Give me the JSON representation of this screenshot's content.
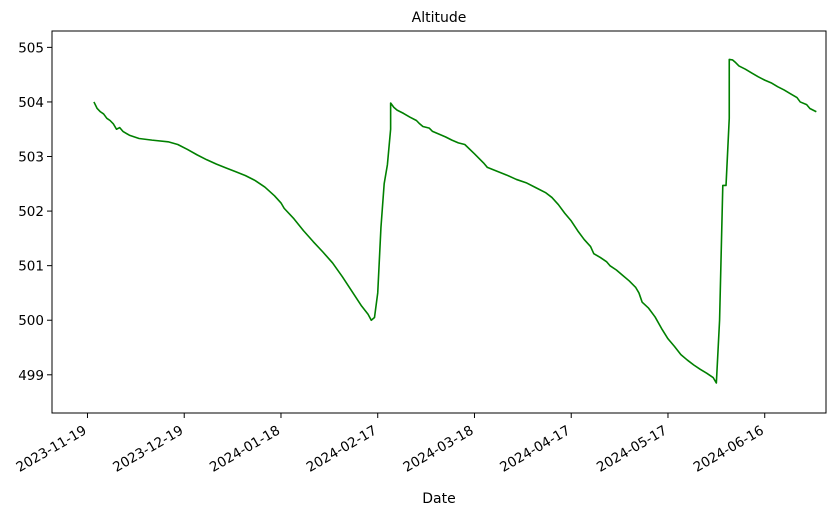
{
  "chart_data": {
    "type": "line",
    "title": "Altitude",
    "xlabel": "Date",
    "ylabel": "",
    "x_axis_type": "date",
    "xlim": [
      "2023-11-08",
      "2024-07-05"
    ],
    "ylim": [
      498.3,
      505.3
    ],
    "x_ticks": [
      "2023-11-19",
      "2023-12-19",
      "2024-01-18",
      "2024-02-17",
      "2024-03-18",
      "2024-04-17",
      "2024-05-17",
      "2024-06-16"
    ],
    "y_ticks": [
      499,
      500,
      501,
      502,
      503,
      504,
      505
    ],
    "grid": false,
    "legend": "none",
    "line_color": "#008000",
    "series": [
      {
        "points": [
          [
            "2023-11-21",
            504.0
          ],
          [
            "2023-11-22",
            503.88
          ],
          [
            "2023-11-23",
            503.82
          ],
          [
            "2023-11-24",
            503.78
          ],
          [
            "2023-11-25",
            503.7
          ],
          [
            "2023-11-26",
            503.66
          ],
          [
            "2023-11-27",
            503.6
          ],
          [
            "2023-11-28",
            503.5
          ],
          [
            "2023-11-29",
            503.53
          ],
          [
            "2023-11-30",
            503.46
          ],
          [
            "2023-12-02",
            503.39
          ],
          [
            "2023-12-05",
            503.33
          ],
          [
            "2023-12-09",
            503.3
          ],
          [
            "2023-12-14",
            503.27
          ],
          [
            "2023-12-17",
            503.22
          ],
          [
            "2023-12-20",
            503.13
          ],
          [
            "2023-12-23",
            503.03
          ],
          [
            "2023-12-26",
            502.94
          ],
          [
            "2023-12-29",
            502.86
          ],
          [
            "2024-01-01",
            502.79
          ],
          [
            "2024-01-04",
            502.72
          ],
          [
            "2024-01-07",
            502.65
          ],
          [
            "2024-01-10",
            502.56
          ],
          [
            "2024-01-13",
            502.44
          ],
          [
            "2024-01-16",
            502.28
          ],
          [
            "2024-01-18",
            502.15
          ],
          [
            "2024-01-19",
            502.05
          ],
          [
            "2024-01-22",
            501.86
          ],
          [
            "2024-01-25",
            501.64
          ],
          [
            "2024-01-28",
            501.44
          ],
          [
            "2024-01-31",
            501.25
          ],
          [
            "2024-02-03",
            501.05
          ],
          [
            "2024-02-06",
            500.8
          ],
          [
            "2024-02-09",
            500.53
          ],
          [
            "2024-02-12",
            500.26
          ],
          [
            "2024-02-14",
            500.11
          ],
          [
            "2024-02-15",
            500.0
          ],
          [
            "2024-02-16",
            500.05
          ],
          [
            "2024-02-17",
            500.5
          ],
          [
            "2024-02-18",
            501.7
          ],
          [
            "2024-02-19",
            502.5
          ],
          [
            "2024-02-20",
            502.85
          ],
          [
            "2024-02-21",
            503.5
          ],
          [
            "2024-02-21",
            503.98
          ],
          [
            "2024-02-22",
            503.9
          ],
          [
            "2024-02-23",
            503.85
          ],
          [
            "2024-02-25",
            503.79
          ],
          [
            "2024-02-27",
            503.72
          ],
          [
            "2024-02-29",
            503.66
          ],
          [
            "2024-03-01",
            503.6
          ],
          [
            "2024-03-02",
            503.55
          ],
          [
            "2024-03-04",
            503.52
          ],
          [
            "2024-03-05",
            503.46
          ],
          [
            "2024-03-07",
            503.41
          ],
          [
            "2024-03-09",
            503.36
          ],
          [
            "2024-03-11",
            503.3
          ],
          [
            "2024-03-13",
            503.25
          ],
          [
            "2024-03-15",
            503.22
          ],
          [
            "2024-03-18",
            503.05
          ],
          [
            "2024-03-21",
            502.87
          ],
          [
            "2024-03-22",
            502.8
          ],
          [
            "2024-03-25",
            502.73
          ],
          [
            "2024-03-28",
            502.66
          ],
          [
            "2024-03-31",
            502.58
          ],
          [
            "2024-04-03",
            502.52
          ],
          [
            "2024-04-06",
            502.43
          ],
          [
            "2024-04-09",
            502.34
          ],
          [
            "2024-04-11",
            502.25
          ],
          [
            "2024-04-13",
            502.12
          ],
          [
            "2024-04-15",
            501.96
          ],
          [
            "2024-04-17",
            501.82
          ],
          [
            "2024-04-19",
            501.64
          ],
          [
            "2024-04-21",
            501.48
          ],
          [
            "2024-04-23",
            501.35
          ],
          [
            "2024-04-24",
            501.22
          ],
          [
            "2024-04-26",
            501.15
          ],
          [
            "2024-04-28",
            501.07
          ],
          [
            "2024-04-29",
            501.0
          ],
          [
            "2024-05-01",
            500.92
          ],
          [
            "2024-05-03",
            500.82
          ],
          [
            "2024-05-05",
            500.72
          ],
          [
            "2024-05-07",
            500.6
          ],
          [
            "2024-05-08",
            500.5
          ],
          [
            "2024-05-09",
            500.33
          ],
          [
            "2024-05-11",
            500.22
          ],
          [
            "2024-05-13",
            500.06
          ],
          [
            "2024-05-15",
            499.85
          ],
          [
            "2024-05-17",
            499.66
          ],
          [
            "2024-05-19",
            499.52
          ],
          [
            "2024-05-21",
            499.37
          ],
          [
            "2024-05-23",
            499.27
          ],
          [
            "2024-05-25",
            499.18
          ],
          [
            "2024-05-27",
            499.1
          ],
          [
            "2024-05-29",
            499.03
          ],
          [
            "2024-05-31",
            498.95
          ],
          [
            "2024-06-01",
            498.85
          ],
          [
            "2024-06-02",
            500.0
          ],
          [
            "2024-06-03",
            502.47
          ],
          [
            "2024-06-04",
            502.47
          ],
          [
            "2024-06-05",
            503.7
          ],
          [
            "2024-06-05",
            504.78
          ],
          [
            "2024-06-06",
            504.77
          ],
          [
            "2024-06-07",
            504.72
          ],
          [
            "2024-06-08",
            504.66
          ],
          [
            "2024-06-10",
            504.6
          ],
          [
            "2024-06-12",
            504.53
          ],
          [
            "2024-06-14",
            504.46
          ],
          [
            "2024-06-16",
            504.4
          ],
          [
            "2024-06-18",
            504.35
          ],
          [
            "2024-06-20",
            504.28
          ],
          [
            "2024-06-22",
            504.22
          ],
          [
            "2024-06-24",
            504.15
          ],
          [
            "2024-06-26",
            504.08
          ],
          [
            "2024-06-27",
            504.0
          ],
          [
            "2024-06-29",
            503.95
          ],
          [
            "2024-06-30",
            503.88
          ],
          [
            "2024-07-02",
            503.82
          ]
        ]
      }
    ]
  }
}
